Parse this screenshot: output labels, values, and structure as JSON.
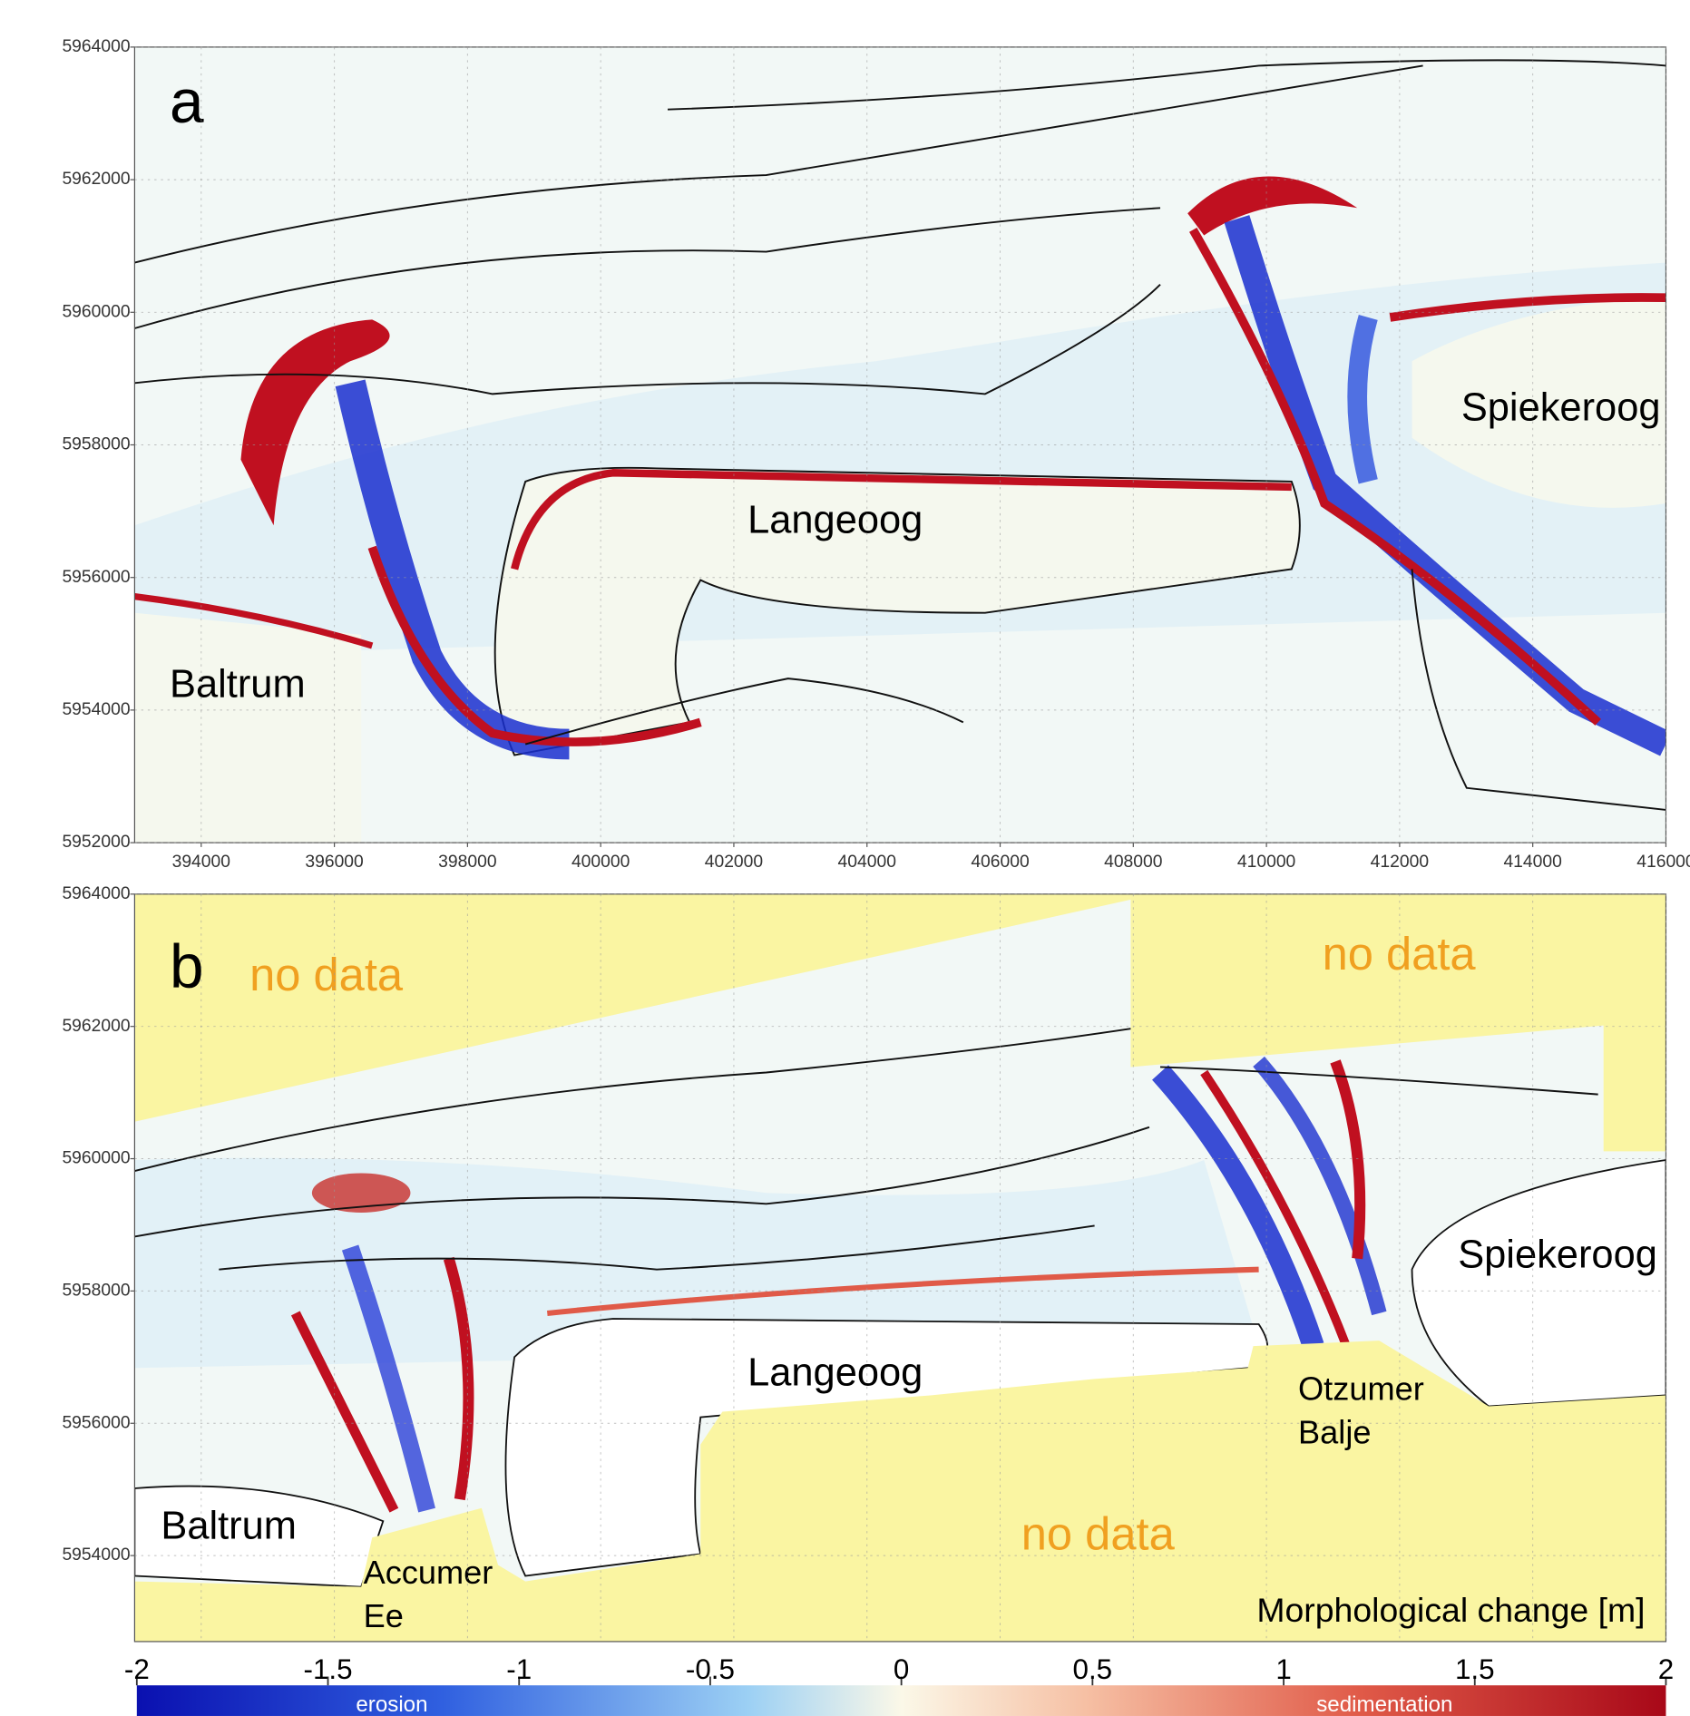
{
  "panels": [
    {
      "label": "a",
      "xlim": [
        393000,
        416000
      ],
      "ylim": [
        5952000,
        5964000
      ],
      "xticks": [
        394000,
        396000,
        398000,
        400000,
        402000,
        404000,
        406000,
        408000,
        410000,
        412000,
        414000,
        416000
      ],
      "yticks": [
        5952000,
        5954000,
        5956000,
        5958000,
        5960000,
        5962000,
        5964000
      ],
      "places": [
        "Langeoog",
        "Spiekeroog",
        "Baltrum"
      ]
    },
    {
      "label": "b",
      "xlim": [
        393000,
        416000
      ],
      "ylim": [
        5952700,
        5964000
      ],
      "yticks": [
        5954000,
        5956000,
        5958000,
        5960000,
        5962000,
        5964000
      ],
      "places": [
        "Langeoog",
        "Spiekeroog",
        "Baltrum",
        "Accumer",
        "Ee",
        "Otzumer",
        "Balje"
      ],
      "annotations": [
        "no data",
        "no data",
        "no data"
      ]
    }
  ],
  "colorbar": {
    "title": "Morphological change [m]",
    "range": [
      -2,
      2
    ],
    "ticks": [
      -2,
      -1.5,
      -1,
      -0.5,
      0,
      0.5,
      1,
      1.5,
      2
    ],
    "end_labels": [
      "erosion",
      "sedimentation"
    ]
  }
}
